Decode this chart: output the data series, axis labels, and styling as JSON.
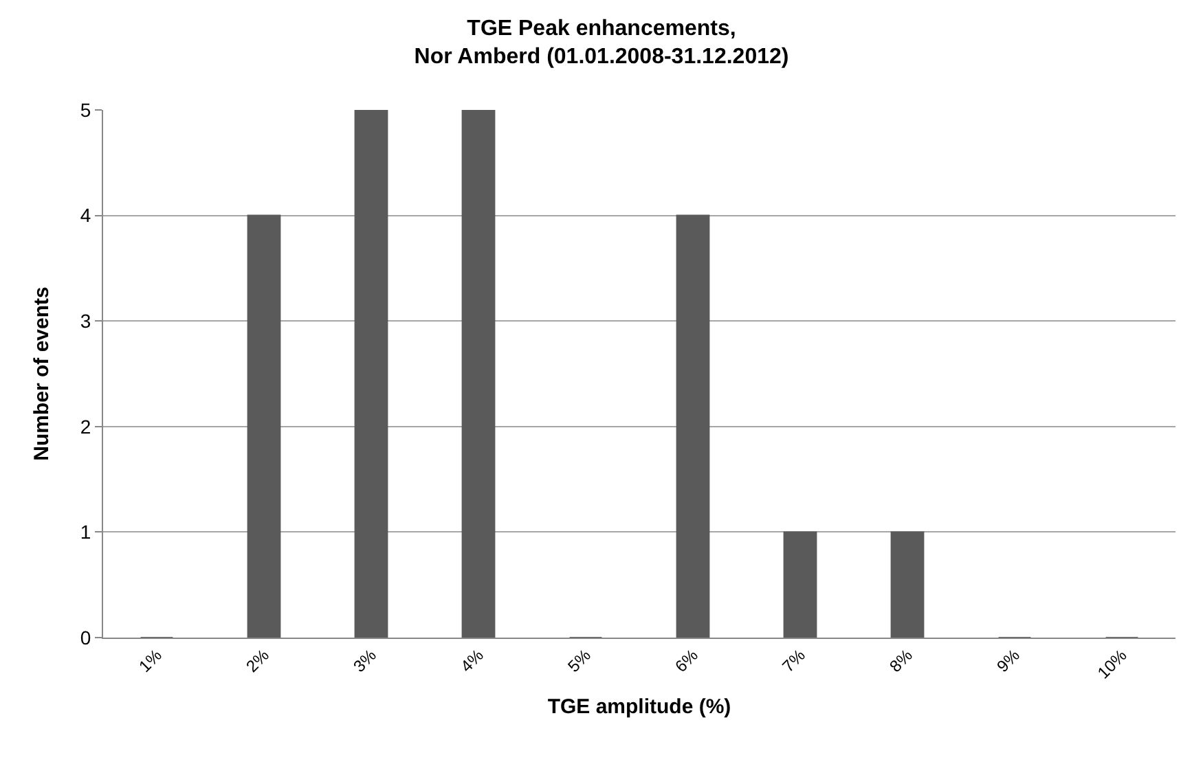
{
  "chart_data": {
    "type": "bar",
    "title": "TGE Peak enhancements,\nNor Amberd (01.01.2008-31.12.2012)",
    "xlabel": "TGE amplitude (%)",
    "ylabel": "Number of events",
    "categories": [
      "1%",
      "2%",
      "3%",
      "4%",
      "5%",
      "6%",
      "7%",
      "8%",
      "9%",
      "10%"
    ],
    "values": [
      0,
      4,
      5,
      5,
      0,
      4,
      1,
      1,
      0,
      0
    ],
    "color": "#5a5a5a",
    "ylim": [
      0,
      5
    ],
    "yticks": [
      0,
      1,
      2,
      3,
      4,
      5
    ],
    "grid": "y"
  }
}
